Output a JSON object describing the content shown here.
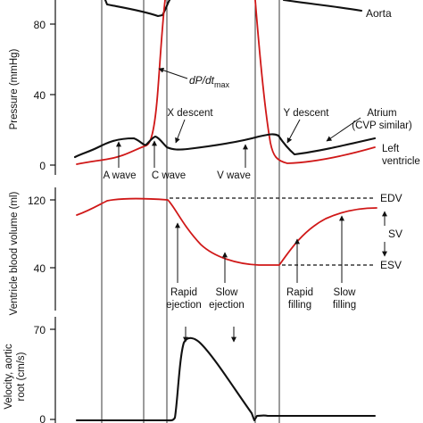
{
  "pressure_panel": {
    "axis_label": "Pressure (mmHg)",
    "ticks": [
      "80",
      "40",
      "0"
    ],
    "labels": {
      "aorta": "Aorta",
      "dpdt": "dP/dt",
      "dpdt_sub": "max",
      "atrium": "Atrium",
      "atrium_sub": "(CVP similar)",
      "x_descent": "X descent",
      "y_descent": "Y descent",
      "left_ventricle_1": "Left",
      "left_ventricle_2": "ventricle",
      "a_wave": "A wave",
      "c_wave": "C wave",
      "v_wave": "V wave"
    }
  },
  "volume_panel": {
    "axis_label": "Ventricle blood volume (ml)",
    "ticks": [
      "120",
      "40"
    ],
    "labels": {
      "edv": "EDV",
      "sv": "SV",
      "esv": "ESV",
      "rapid_ejection_1": "Rapid",
      "rapid_ejection_2": "ejection",
      "slow_ejection_1": "Slow",
      "slow_ejection_2": "ejection",
      "rapid_filling_1": "Rapid",
      "rapid_filling_2": "filling",
      "slow_filling_1": "Slow",
      "slow_filling_2": "filling"
    }
  },
  "velocity_panel": {
    "axis_label_1": "Velocity, aortic",
    "axis_label_2": "root (cm/s)",
    "ticks": [
      "70",
      "0"
    ]
  },
  "colors": {
    "ink": "#111111",
    "ventricle_red": "#d01818"
  }
}
